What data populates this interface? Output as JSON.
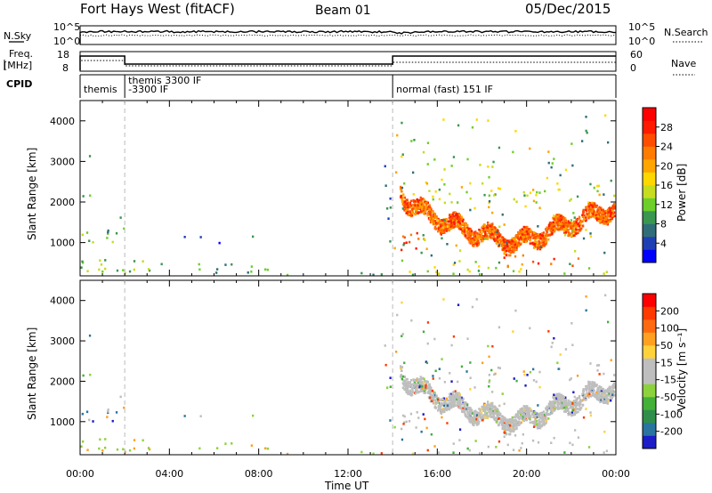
{
  "header": {
    "station": "Fort Hays West (fitACF)",
    "beam": "Beam 01",
    "date": "05/Dec/2015"
  },
  "top_panels": {
    "nsky_label": "N.Sky",
    "nsky_ticks": [
      "10^5",
      "10^0"
    ],
    "nsearch_label": "N.Search",
    "freq_label_1": "Freq.",
    "freq_label_2": "[MHz]",
    "freq_ticks": [
      "18",
      "8"
    ],
    "nave_ticks": [
      "60",
      "0"
    ],
    "nave_label": "Nave",
    "cpid_label": "CPID",
    "cpid_segments": [
      {
        "label": "themis",
        "start_hour": 0,
        "end_hour": 2
      },
      {
        "label": "themis 3300 IF",
        "start_hour": 2,
        "end_hour": 14
      },
      {
        "label": "-3300 IF",
        "start_hour": 2,
        "end_hour": 14
      },
      {
        "label": "normal (fast) 151 IF",
        "start_hour": 14,
        "end_hour": 24
      }
    ]
  },
  "chart_data": [
    {
      "type": "heatmap",
      "quantity": "power",
      "ylabel": "Slant Range [km]",
      "ylim": [
        180,
        4500
      ],
      "yticks": [
        "1000",
        "2000",
        "3000",
        "4000"
      ],
      "xlim_hours": [
        0,
        24
      ],
      "colorbar_label": "Power [dB]",
      "colorbar_ticks": [
        "4",
        "8",
        "12",
        "16",
        "20",
        "24",
        "28"
      ],
      "colorbar_colors": [
        "#0000ff",
        "#1e3fb4",
        "#2f6e78",
        "#3a9650",
        "#6ccf2a",
        "#c6dc1e",
        "#ffd700",
        "#ffa500",
        "#ff7c00",
        "#ff4d00",
        "#ff1a00",
        "#ff0000"
      ],
      "regions": [
        {
          "t0": 0.0,
          "t1": 2.1,
          "r0": 180,
          "r1": 350,
          "level": 10,
          "density": 0.6
        },
        {
          "t0": 0.0,
          "t1": 1.8,
          "r0": 950,
          "r1": 1300,
          "level": 12,
          "density": 0.45
        },
        {
          "t0": 0.6,
          "t1": 2.0,
          "r0": 1100,
          "r1": 1700,
          "level": 9,
          "density": 0.35
        },
        {
          "t0": 0.0,
          "t1": 0.5,
          "r0": 1700,
          "r1": 2400,
          "level": 12,
          "density": 0.35
        },
        {
          "t0": 0.2,
          "t1": 1.0,
          "r0": 2500,
          "r1": 3600,
          "level": 6,
          "density": 0.07
        },
        {
          "t0": 0.0,
          "t1": 5.5,
          "r0": 280,
          "r1": 620,
          "level": 12,
          "density": 0.5
        },
        {
          "t0": 5.5,
          "t1": 9.5,
          "r0": 180,
          "r1": 500,
          "level": 9,
          "density": 0.4
        },
        {
          "t0": 4.0,
          "t1": 8.0,
          "r0": 1000,
          "r1": 1200,
          "level": 4,
          "density": 0.25
        },
        {
          "t0": 9.0,
          "t1": 14.0,
          "r0": 180,
          "r1": 300,
          "level": 8,
          "density": 0.35
        },
        {
          "t0": 13.4,
          "t1": 14.0,
          "r0": 900,
          "r1": 3100,
          "level": 6,
          "density": 0.25
        },
        {
          "t0": 14.0,
          "t1": 15.5,
          "r0": 700,
          "r1": 1300,
          "level": 22,
          "density": 0.7
        },
        {
          "t0": 14.1,
          "t1": 24.0,
          "r0": 2000,
          "r1": 2500,
          "level": 13,
          "density": 0.4
        },
        {
          "t0": 15.5,
          "t1": 18.5,
          "r0": 2400,
          "r1": 3200,
          "level": 13,
          "density": 0.2
        },
        {
          "t0": 14.0,
          "t1": 24.0,
          "r0": 180,
          "r1": 500,
          "level": 14,
          "density": 0.25
        },
        {
          "t0": 18.8,
          "t1": 20.5,
          "r0": 450,
          "r1": 800,
          "level": 24,
          "density": 0.6
        },
        {
          "t0": 21.0,
          "t1": 22.5,
          "r0": 400,
          "r1": 650,
          "level": 24,
          "density": 0.55
        }
      ],
      "band": {
        "t0": 14.3,
        "t1": 24.0,
        "r_start": 2400,
        "r_mid": 1000,
        "t_mid": 19.5,
        "r_end": 1900,
        "width": 380,
        "level": 27
      }
    },
    {
      "type": "heatmap",
      "quantity": "velocity",
      "ylabel": "Slant Range [km]",
      "ylim": [
        180,
        4500
      ],
      "yticks": [
        "1000",
        "2000",
        "3000",
        "4000"
      ],
      "xlim_hours": [
        0,
        24
      ],
      "xticks": [
        "00:00",
        "04:00",
        "08:00",
        "12:00",
        "16:00",
        "20:00",
        "00:00"
      ],
      "xlabel": "Time UT",
      "colorbar_label": "Velocity [m s⁻¹]",
      "colorbar_ticks": [
        "200",
        "100",
        "50",
        "15",
        "-15",
        "-50",
        "-100",
        "-200"
      ],
      "colorbar_colors": [
        "#1c1cc8",
        "#2a74a0",
        "#2f8f4a",
        "#43b038",
        "#8cd23c",
        "#bebebe",
        "#bebebe",
        "#ffd23c",
        "#ffa020",
        "#ff6a10",
        "#ff3a00",
        "#ff0000"
      ]
    }
  ]
}
